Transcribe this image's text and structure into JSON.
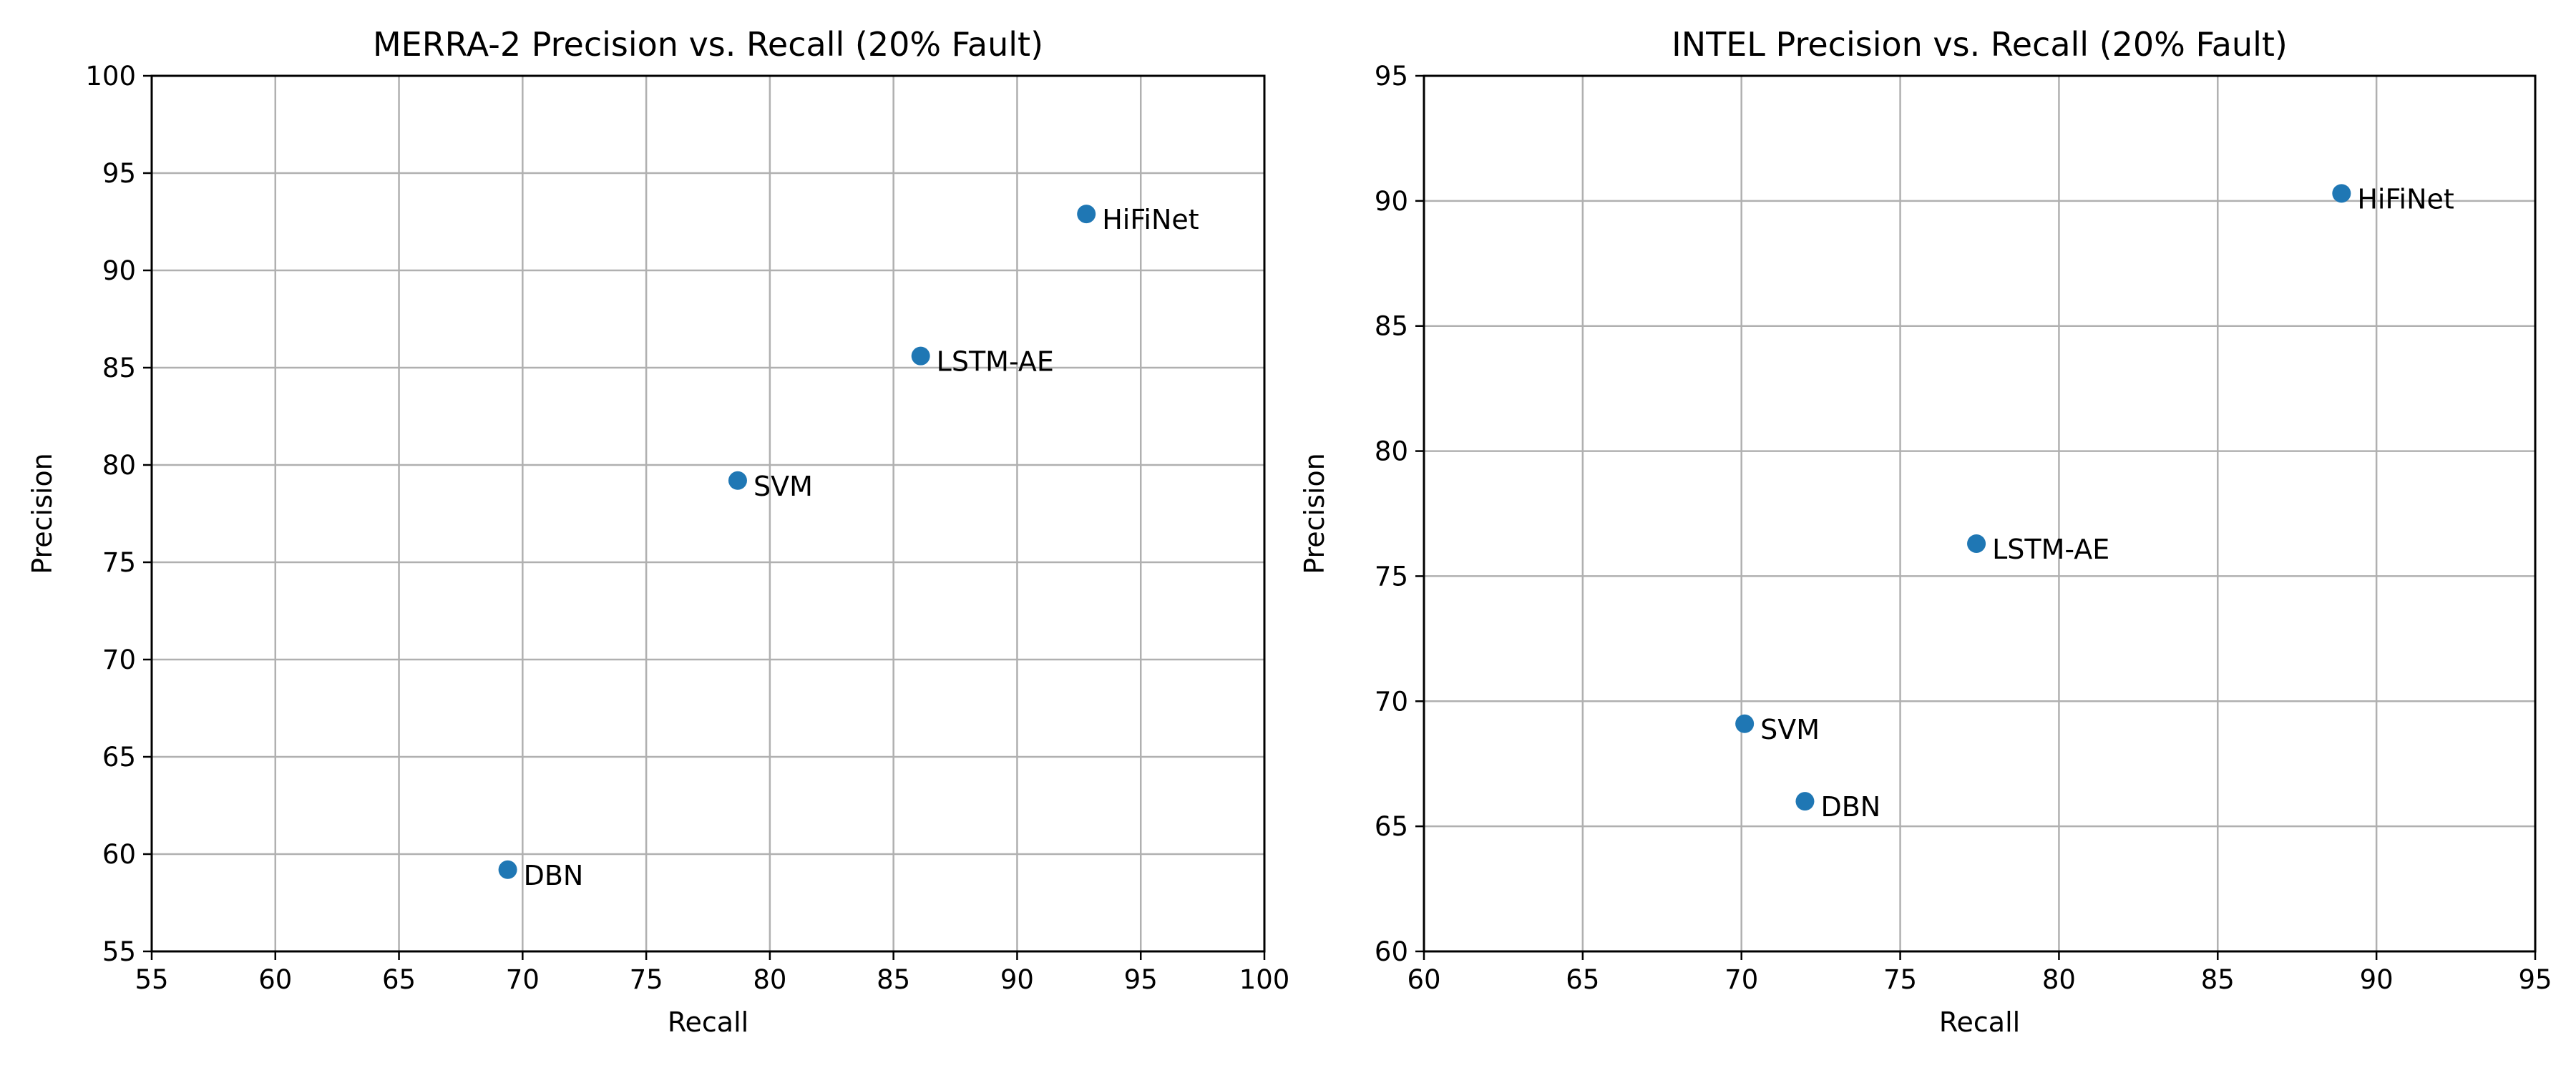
{
  "chart_data": [
    {
      "type": "scatter",
      "title": "MERRA-2 Precision vs. Recall (20% Fault)",
      "xlabel": "Recall",
      "ylabel": "Precision",
      "xlim": [
        55,
        100
      ],
      "ylim": [
        55,
        100
      ],
      "xticks": [
        55,
        60,
        65,
        70,
        75,
        80,
        85,
        90,
        95,
        100
      ],
      "yticks": [
        55,
        60,
        65,
        70,
        75,
        80,
        85,
        90,
        95,
        100
      ],
      "grid": true,
      "color": "#1f77b4",
      "points": [
        {
          "label": "DBN",
          "x": 69.4,
          "y": 59.2
        },
        {
          "label": "SVM",
          "x": 78.7,
          "y": 79.2
        },
        {
          "label": "LSTM-AE",
          "x": 86.1,
          "y": 85.6
        },
        {
          "label": "HiFiNet",
          "x": 92.8,
          "y": 92.9
        }
      ]
    },
    {
      "type": "scatter",
      "title": "INTEL Precision vs. Recall (20% Fault)",
      "xlabel": "Recall",
      "ylabel": "Precision",
      "xlim": [
        60,
        95
      ],
      "ylim": [
        60,
        95
      ],
      "xticks": [
        60,
        65,
        70,
        75,
        80,
        85,
        90,
        95
      ],
      "yticks": [
        60,
        65,
        70,
        75,
        80,
        85,
        90,
        95
      ],
      "grid": true,
      "color": "#1f77b4",
      "points": [
        {
          "label": "SVM",
          "x": 70.1,
          "y": 69.1
        },
        {
          "label": "DBN",
          "x": 72.0,
          "y": 66.0
        },
        {
          "label": "LSTM-AE",
          "x": 77.4,
          "y": 76.3
        },
        {
          "label": "HiFiNet",
          "x": 88.9,
          "y": 90.3
        }
      ]
    }
  ]
}
